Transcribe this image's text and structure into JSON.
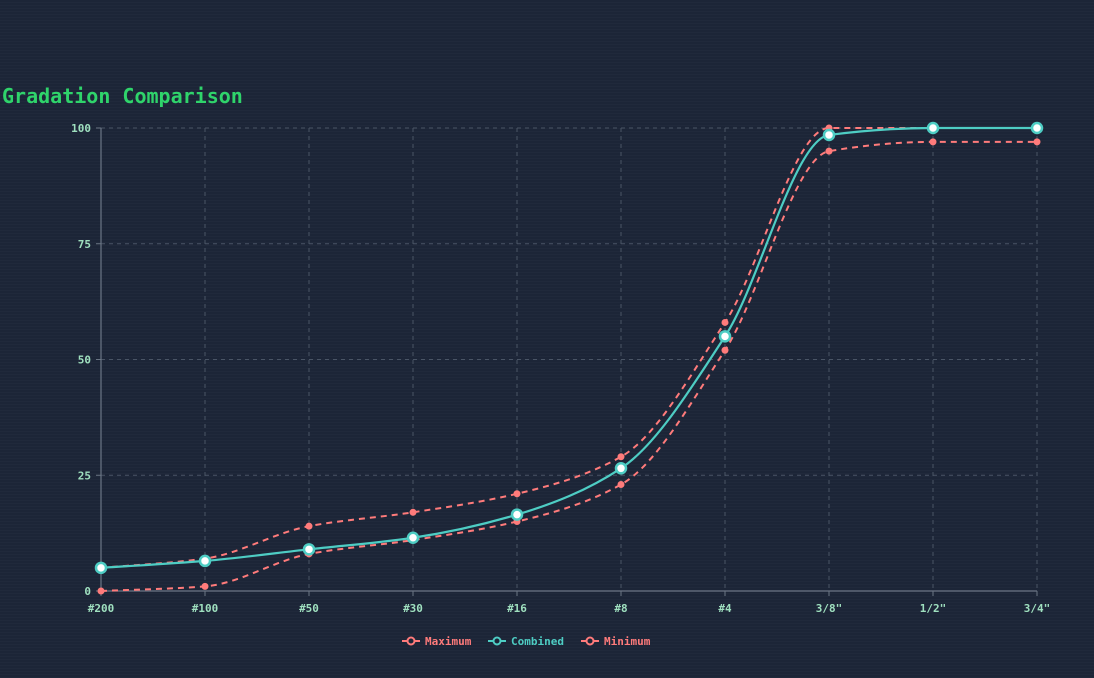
{
  "colors": {
    "background": "#1c2537",
    "title": "#2fd46b",
    "tick_label": "#9fe0bf",
    "grid": "#4a5566",
    "axis": "#6b7685",
    "combined": "#4ecdc4",
    "combined_marker_fill": "#ffffff",
    "maximum": "#ff7b7b",
    "minimum": "#ff7b7b"
  },
  "chart_data": {
    "type": "line",
    "title": "Gradation Comparison",
    "categories": [
      "#200",
      "#100",
      "#50",
      "#30",
      "#16",
      "#8",
      "#4",
      "3/8\"",
      "1/2\"",
      "3/4\""
    ],
    "ylim": [
      0,
      100
    ],
    "yticks": [
      0,
      25,
      50,
      75,
      100
    ],
    "grid": true,
    "legend_position": "bottom-center",
    "series": [
      {
        "name": "Maximum",
        "style": "dashed",
        "values": [
          5,
          7,
          14,
          17,
          21,
          29,
          58,
          100,
          100,
          100
        ]
      },
      {
        "name": "Combined",
        "style": "solid",
        "values": [
          5,
          6.5,
          9,
          11.5,
          16.5,
          26.5,
          55,
          98.5,
          100,
          100
        ]
      },
      {
        "name": "Minimum",
        "style": "dashed",
        "values": [
          0,
          1,
          8,
          11,
          15,
          23,
          52,
          95,
          97,
          97
        ]
      }
    ]
  }
}
